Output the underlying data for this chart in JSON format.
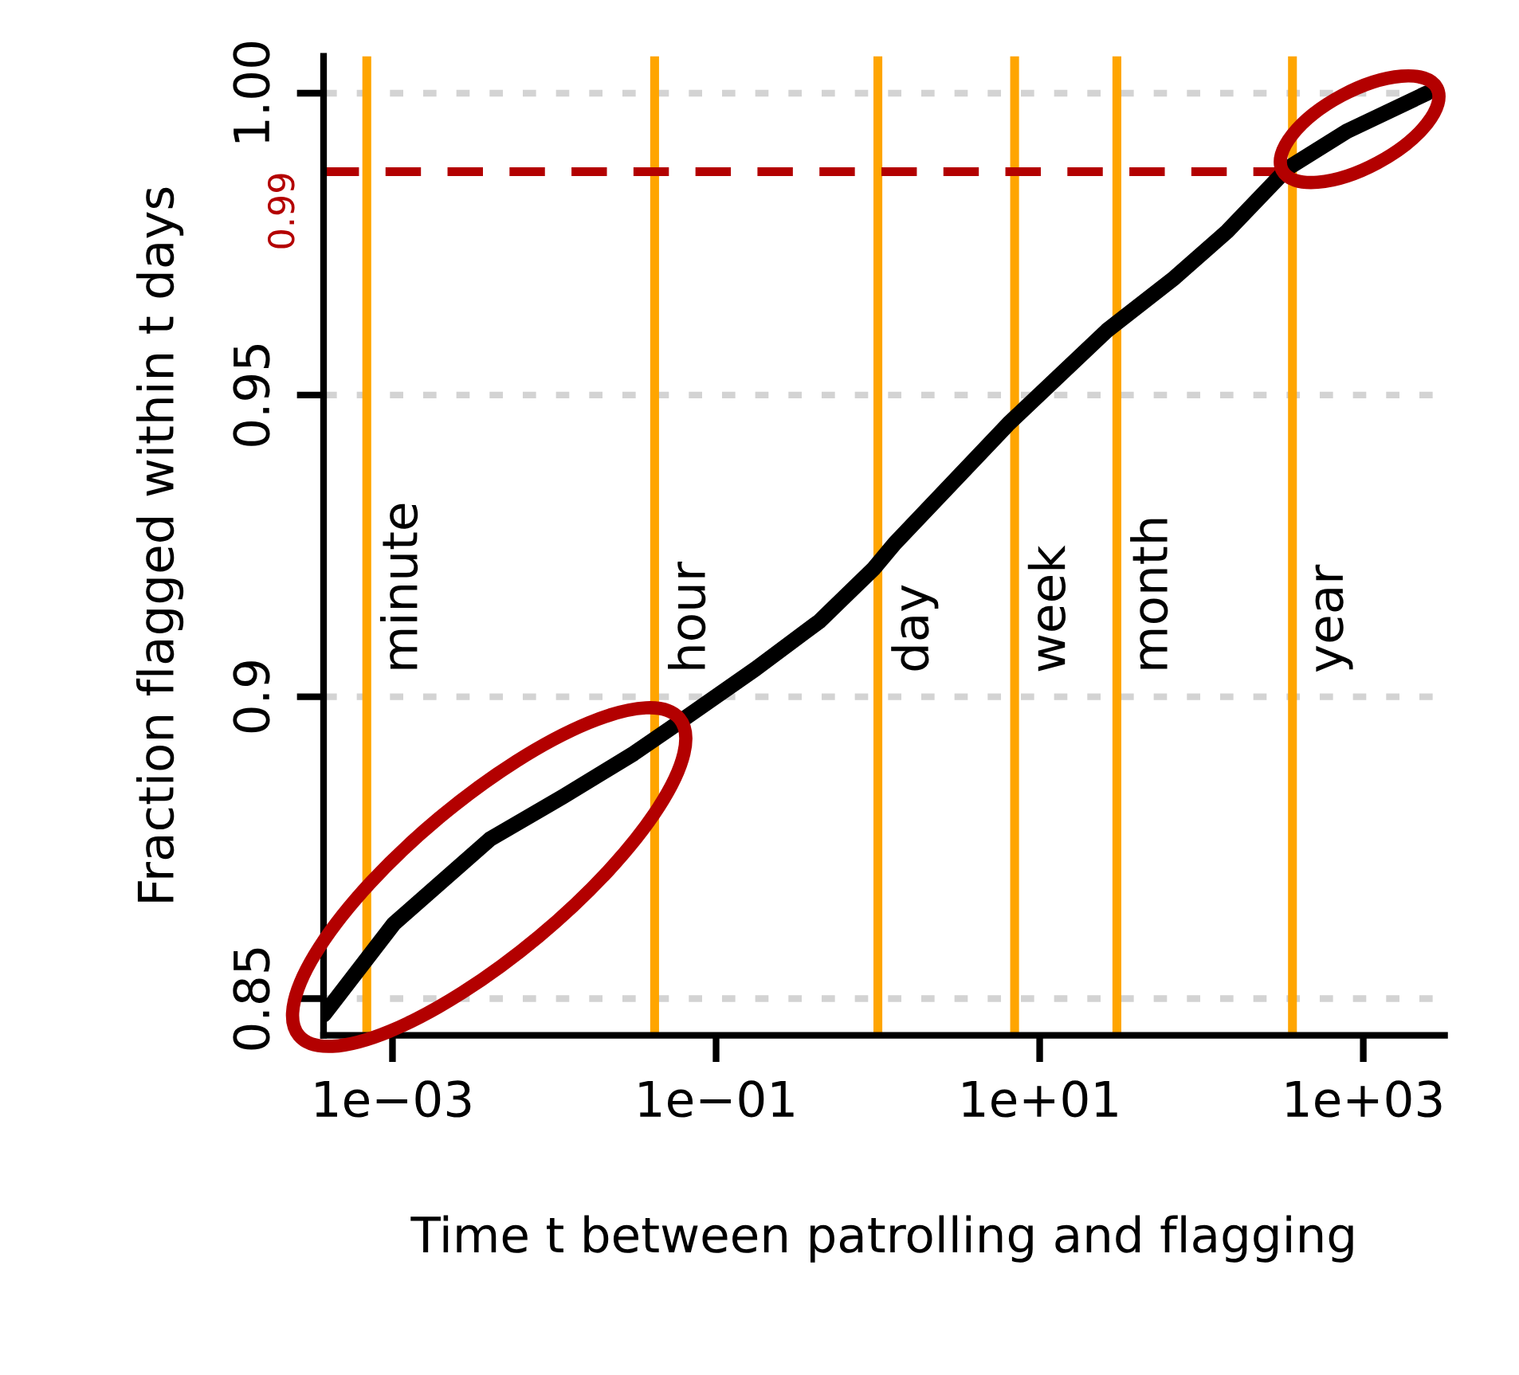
{
  "chart_data": {
    "type": "line",
    "xlabel": "Time t between patrolling and flagging",
    "ylabel": "Fraction flagged within t days",
    "x": [
      0.000376,
      0.00102,
      0.004,
      0.0114,
      0.031,
      0.0524,
      0.175,
      0.435,
      0.94,
      1.27,
      6.4,
      26.1,
      68,
      144,
      342,
      792,
      2470
    ],
    "series": [
      {
        "color": "#000000",
        "values": [
          0.8473,
          0.8624,
          0.8764,
          0.8835,
          0.8906,
          0.8948,
          0.9046,
          0.9125,
          0.9212,
          0.9254,
          0.9452,
          0.9607,
          0.9694,
          0.9771,
          0.9876,
          0.9937,
          1.0
        ]
      }
    ],
    "log": "x",
    "xlim": [
      0.000375,
      3180
    ],
    "ylim": [
      0.8439,
      1.0061
    ],
    "xticks": [
      {
        "value": 0.001,
        "label": "1e−03"
      },
      {
        "value": 0.1,
        "label": "1e−01"
      },
      {
        "value": 10,
        "label": "1e+01"
      },
      {
        "value": 1000,
        "label": "1e+03"
      }
    ],
    "yticks": [
      0.85,
      0.9,
      0.95,
      {
        "value": 1.0,
        "label": "1.00"
      }
    ],
    "grid": "y",
    "legend": false,
    "marker": "none",
    "line_style": "solid",
    "ref_lines": [
      {
        "axis": "x",
        "value": 0.000694,
        "label": "minute",
        "color": "#ffa500"
      },
      {
        "axis": "x",
        "value": 0.0417,
        "label": "hour",
        "color": "#ffa500"
      },
      {
        "axis": "x",
        "value": 1,
        "label": "day",
        "color": "#ffa500"
      },
      {
        "axis": "x",
        "value": 7,
        "label": "week",
        "color": "#ffa500"
      },
      {
        "axis": "x",
        "value": 30,
        "label": "month",
        "color": "#ffa500"
      },
      {
        "axis": "x",
        "value": 365,
        "label": "year",
        "color": "#ffa500"
      },
      {
        "axis": "y",
        "value": 0.987,
        "label": "0.99",
        "color": "#b30000",
        "line_style": "dashed"
      }
    ]
  }
}
